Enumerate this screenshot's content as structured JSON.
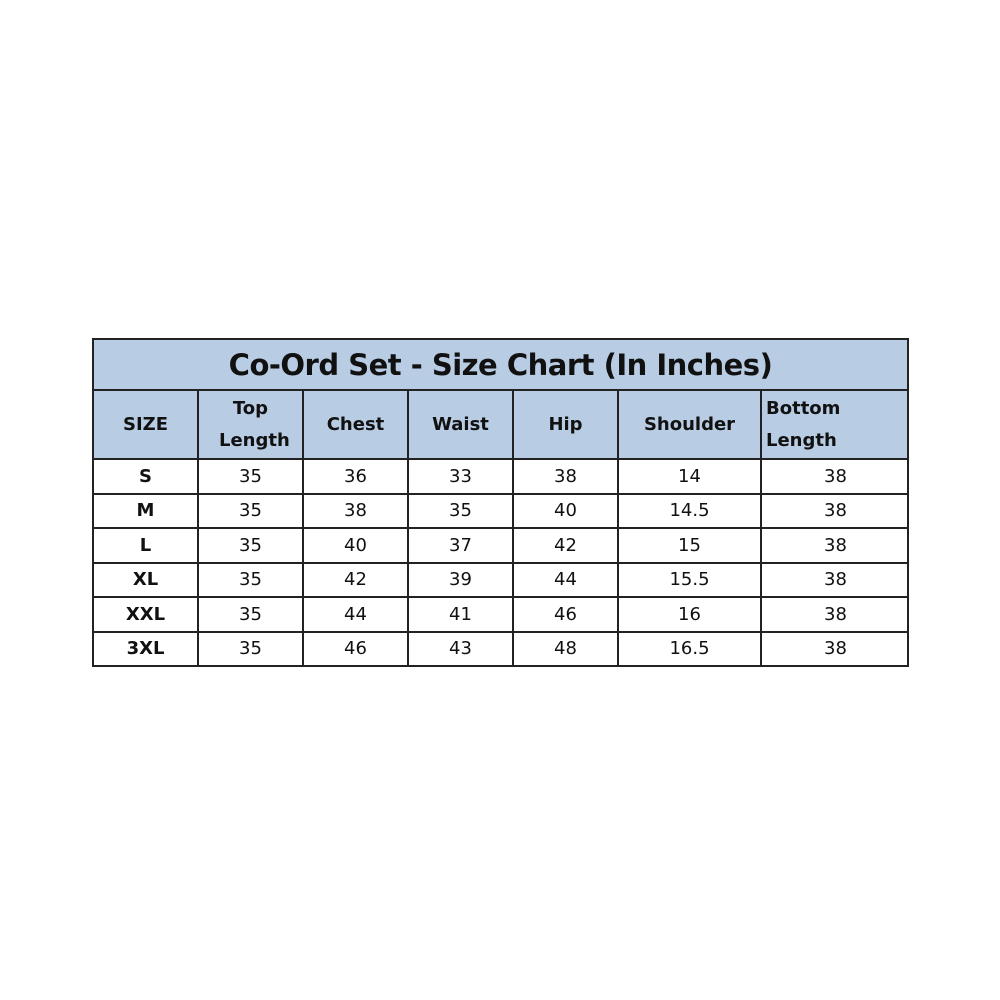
{
  "title": "Co-Ord Set - Size Chart (In Inches)",
  "header_color": "#b8cce4",
  "columns": [
    "SIZE",
    "Top Length",
    "Chest",
    "Waist",
    "Hip",
    "Shoulder",
    "Bottom Length"
  ],
  "rows": [
    [
      "S",
      "35",
      "36",
      "33",
      "38",
      "14",
      "38"
    ],
    [
      "M",
      "35",
      "38",
      "35",
      "40",
      "14.5",
      "38"
    ],
    [
      "L",
      "35",
      "40",
      "37",
      "42",
      "15",
      "38"
    ],
    [
      "XL",
      "35",
      "42",
      "39",
      "44",
      "15.5",
      "38"
    ],
    [
      "XXL",
      "35",
      "44",
      "41",
      "46",
      "16",
      "38"
    ],
    [
      "3XL",
      "35",
      "46",
      "43",
      "48",
      "16.5",
      "38"
    ]
  ]
}
